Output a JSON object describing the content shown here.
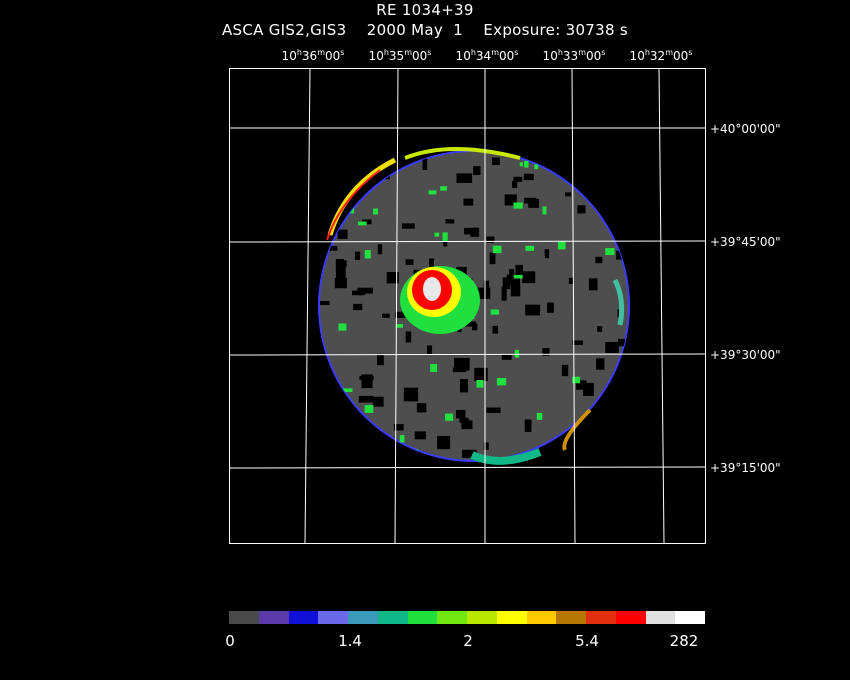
{
  "header": {
    "object": "RE 1034+39",
    "instrument": "ASCA GIS2,GIS3",
    "date": "2000 May  1",
    "exposure": "Exposure: 30738 s"
  },
  "ra_ticks": [
    {
      "h": "10",
      "m": "36",
      "s": "00"
    },
    {
      "h": "10",
      "m": "35",
      "s": "00"
    },
    {
      "h": "10",
      "m": "34",
      "s": "00"
    },
    {
      "h": "10",
      "m": "33",
      "s": "00"
    },
    {
      "h": "10",
      "m": "32",
      "s": "00"
    }
  ],
  "dec_ticks": [
    "+40°00'00\"",
    "+39°45'00\"",
    "+39°30'00\"",
    "+39°15'00\""
  ],
  "colorbar": {
    "colors": [
      "#4a4a4a",
      "#5a3aa8",
      "#1010d8",
      "#6a6ae8",
      "#3a9ab8",
      "#10b888",
      "#20e040",
      "#70e810",
      "#b8e800",
      "#ffff00",
      "#ffc800",
      "#b87800",
      "#e03010",
      "#ff0000",
      "#e0e0e0",
      "#ffffff"
    ],
    "labels": [
      "0",
      "1.4",
      "2",
      "5.4",
      "282"
    ]
  }
}
